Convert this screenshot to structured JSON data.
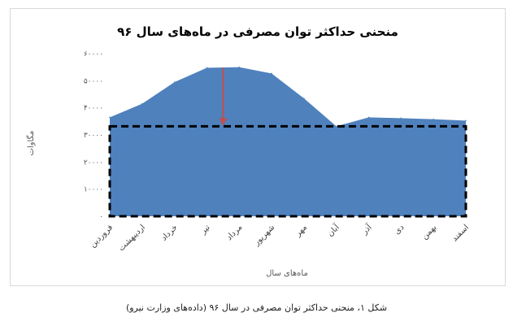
{
  "chart_data": {
    "type": "area",
    "title": "منحنی حداکثر توان مصرفی در ماه‌های سال ۹۶",
    "xlabel": "ماه‌های سال",
    "ylabel": "مگاوات",
    "categories": [
      "فروردین",
      "اردیبهشت",
      "خرداد",
      "تیر",
      "مرداد",
      "شهریور",
      "مهر",
      "آبان",
      "آذر",
      "دی",
      "بهمن",
      "اسفند"
    ],
    "series": [
      {
        "values": [
          36500,
          41500,
          49500,
          54800,
          55000,
          52700,
          43500,
          33200,
          36500,
          36200,
          35800,
          35300
        ]
      }
    ],
    "ylim": [
      0,
      60000
    ],
    "yticks": [
      0,
      10000,
      20000,
      30000,
      40000,
      50000,
      60000
    ],
    "ytick_labels": [
      "۰",
      "۱۰۰۰۰",
      "۲۰۰۰۰",
      "۳۰۰۰۰",
      "۴۰۰۰۰",
      "۵۰۰۰۰",
      "۶۰۰۰۰"
    ],
    "dashed_base_level": 33200,
    "arrow_category": "تیر",
    "grid": false,
    "colors": {
      "area": "#4f81bd",
      "arrow": "#c0504d",
      "dash": "#000000"
    }
  },
  "caption": "شکل ۱، منحنی حداکثر توان مصرفی در سال ۹۶ (داده‌های وزارت نیرو)"
}
